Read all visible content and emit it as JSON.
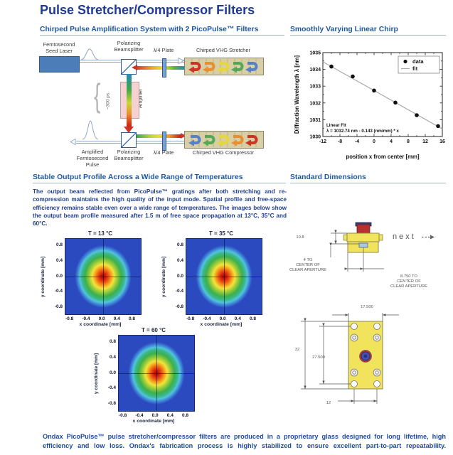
{
  "page_title": "Pulse Stretcher/Compressor Filters",
  "sections": {
    "cpa": {
      "heading": "Chirped Pulse Amplification System with 2 PicoPulse™ Filters"
    },
    "chirp": {
      "heading": "Smoothly Varying Linear Chirp"
    },
    "stability": {
      "heading": "Stable Output Profile Across a Wide Range of Temperatures",
      "body": "The output beam reflected from PicoPulse™ gratings after both stretching and re-compression maintains the high quality of the input mode. Spatial profile and free-space efficiency remains stable even over a wide range of temperatures. The images below show the output beam profile measured after 1.5 m of free space propagation at 13°C, 35°C and 60°C."
    },
    "dimensions": {
      "heading": "Standard Dimensions"
    }
  },
  "diagram": {
    "seed_laser": "Femtosecond\nSeed Laser",
    "beamsplitter": "Polarizing\nBeamsplitter",
    "quarter_wave": "λ/4 Plate",
    "stretcher": "Chirped VHG Stretcher",
    "compressor": "Chirped VHG Compressor",
    "amplifier": "Amplifier",
    "pulse_duration": "~300 ps",
    "output_pulse": "Amplified\nFemtosecond\nPulse"
  },
  "chart_data": {
    "type": "scatter",
    "title": "",
    "xlabel": "position x from center [mm]",
    "ylabel": "Diffraction Wavelength λ [nm]",
    "xlim": [
      -12,
      16
    ],
    "ylim": [
      1030,
      1035
    ],
    "xticks": [
      -12,
      -8,
      -4,
      0,
      4,
      8,
      12,
      16
    ],
    "yticks": [
      1030,
      1031,
      1032,
      1033,
      1034,
      1035
    ],
    "grid": false,
    "legend_position": "upper right",
    "series": [
      {
        "name": "data",
        "type": "scatter",
        "x": [
          -10,
          -5,
          0,
          5,
          10,
          15
        ],
        "y": [
          1034.17,
          1033.58,
          1032.74,
          1032.02,
          1031.27,
          1030.62
        ]
      },
      {
        "name": "fit",
        "type": "line",
        "intercept": 1032.74,
        "slope": -0.143
      }
    ],
    "legend": [
      "data",
      "fit"
    ],
    "annotation": "Linear Fit\nλ = 1032.74 nm - 0.143 (nm/mm) * x"
  },
  "heatmaps": {
    "xlabel": "x coordinate [mm]",
    "ylabel": "y coordinate [mm]",
    "xticks": [
      "-0.8",
      "-0.4",
      "0.0",
      "0.4",
      "0.8"
    ],
    "yticks": [
      "0.8",
      "0.4",
      "0.0",
      "-0.4",
      "-0.8"
    ],
    "plots": [
      {
        "title": "T = 13 °C"
      },
      {
        "title": "T = 35 °C"
      },
      {
        "title": "T = 60 °C"
      }
    ]
  },
  "dimensions_drawing": {
    "side": {
      "dim_height": "10.8",
      "dim_aperture_v": "4 TO\nCENTER OF\nCLEAR APERTURE",
      "dim_aperture_h": "8.750 TO\nCENTER OF\nCLEAR APERTURE"
    },
    "top": {
      "dim_width": "17.500",
      "dim_height_outer": "32",
      "dim_height_inner": "27.500",
      "dim_hole_spacing": "12"
    }
  },
  "next_link": {
    "label": "next"
  },
  "footer": "Ondax PicoPulse™ pulse stretcher/compressor filters are produced in a proprietary glass designed for long lifetime, high efficiency and low loss. Ondax's fabrication process is highly stabilized to ensure excellent part-to-part repeatability.",
  "colors": {
    "title_navy": "#1e3a92",
    "heading_blue": "#1f58a8",
    "body_blue": "#203f90",
    "footer_blue": "#1d4ba6",
    "rule": "#a4b6cc",
    "laser_blue": "#4d7db8",
    "grating_tan": "#d8cfa6",
    "heatmap_blue": "#2b4abf",
    "device_yellow": "#f2e35c",
    "cap_red": "#b83030",
    "spec_red": "#cc3322",
    "spec_orange": "#e89030",
    "spec_yellow": "#e6d83c",
    "spec_green": "#55a855",
    "spec_blue": "#5880c8"
  }
}
